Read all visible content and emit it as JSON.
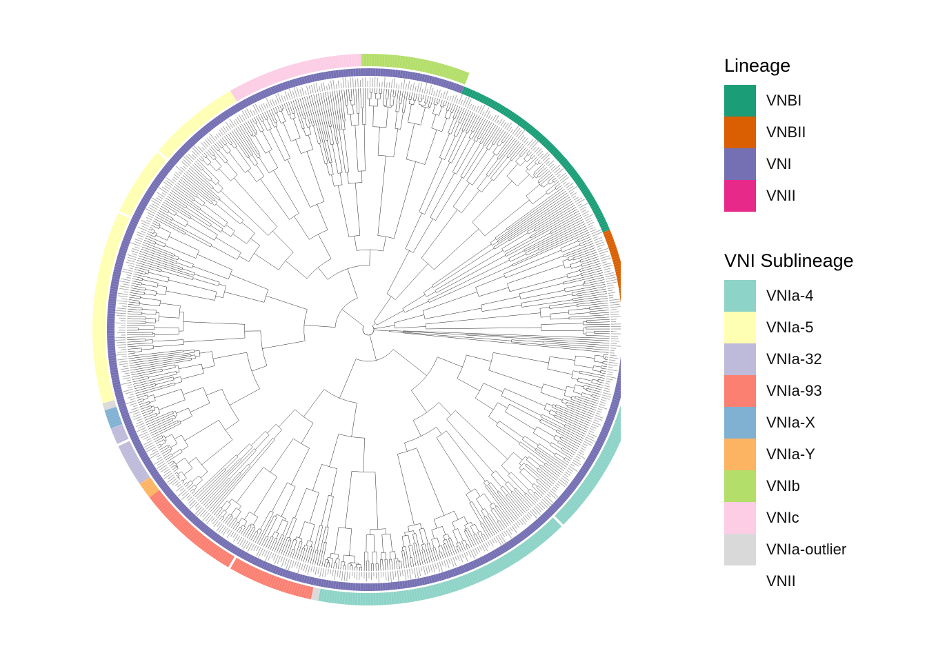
{
  "legends": {
    "lineage": {
      "title": "Lineage",
      "items": [
        {
          "label": "VNBI",
          "color": "#1b9e77"
        },
        {
          "label": "VNBII",
          "color": "#d95f02"
        },
        {
          "label": "VNI",
          "color": "#7570b3"
        },
        {
          "label": "VNII",
          "color": "#e7298a"
        }
      ]
    },
    "sublineage": {
      "title": "VNI Sublineage",
      "items": [
        {
          "label": "VNIa-4",
          "color": "#8dd3c7"
        },
        {
          "label": "VNIa-5",
          "color": "#ffffb3"
        },
        {
          "label": "VNIa-32",
          "color": "#bebada"
        },
        {
          "label": "VNIa-93",
          "color": "#fb8072"
        },
        {
          "label": "VNIa-X",
          "color": "#80b1d3"
        },
        {
          "label": "VNIa-Y",
          "color": "#fdb462"
        },
        {
          "label": "VNIb",
          "color": "#b3de69"
        },
        {
          "label": "VNIc",
          "color": "#fccde5"
        },
        {
          "label": "VNIa-outlier",
          "color": "#d9d9d9"
        },
        {
          "label": "VNII",
          "color": "#ffffff"
        }
      ]
    }
  },
  "tree": {
    "layout": "circular",
    "rings": {
      "lineage": [
        {
          "group": "VNBI",
          "start_deg": -68.5,
          "end_deg": -22.5
        },
        {
          "group": "VNBII",
          "start_deg": -22.5,
          "end_deg": -3.5
        },
        {
          "group": "VNII",
          "start_deg": -3.5,
          "end_deg": 1.0
        },
        {
          "group": "VNI",
          "start_deg": 1.0,
          "end_deg": 291.5
        }
      ],
      "sublineage": [
        {
          "group": "VNIa-4",
          "start_deg": 1.0,
          "end_deg": 45.0
        },
        {
          "group": "VNIa-4",
          "start_deg": 45.5,
          "end_deg": 100.5
        },
        {
          "group": "VNIa-outlier",
          "start_deg": 100.5,
          "end_deg": 102.0
        },
        {
          "group": "VNIa-93",
          "start_deg": 102.0,
          "end_deg": 120.0
        },
        {
          "group": "VNIa-93",
          "start_deg": 120.5,
          "end_deg": 142.5
        },
        {
          "group": "VNIa-Y",
          "start_deg": 142.5,
          "end_deg": 146.0
        },
        {
          "group": "VNIa-32",
          "start_deg": 146.0,
          "end_deg": 155.0
        },
        {
          "group": "VNIa-32",
          "start_deg": 155.5,
          "end_deg": 159.0
        },
        {
          "group": "VNIa-X",
          "start_deg": 159.0,
          "end_deg": 163.0
        },
        {
          "group": "VNIa-outlier",
          "start_deg": 163.0,
          "end_deg": 164.5
        },
        {
          "group": "VNIa-5",
          "start_deg": 164.5,
          "end_deg": 205.0
        },
        {
          "group": "VNIa-5",
          "start_deg": 205.5,
          "end_deg": 220.0
        },
        {
          "group": "VNIa-5",
          "start_deg": 220.5,
          "end_deg": 240.0
        },
        {
          "group": "VNIc",
          "start_deg": 240.0,
          "end_deg": 268.5
        },
        {
          "group": "VNIb",
          "start_deg": 268.5,
          "end_deg": 291.5
        }
      ]
    }
  }
}
